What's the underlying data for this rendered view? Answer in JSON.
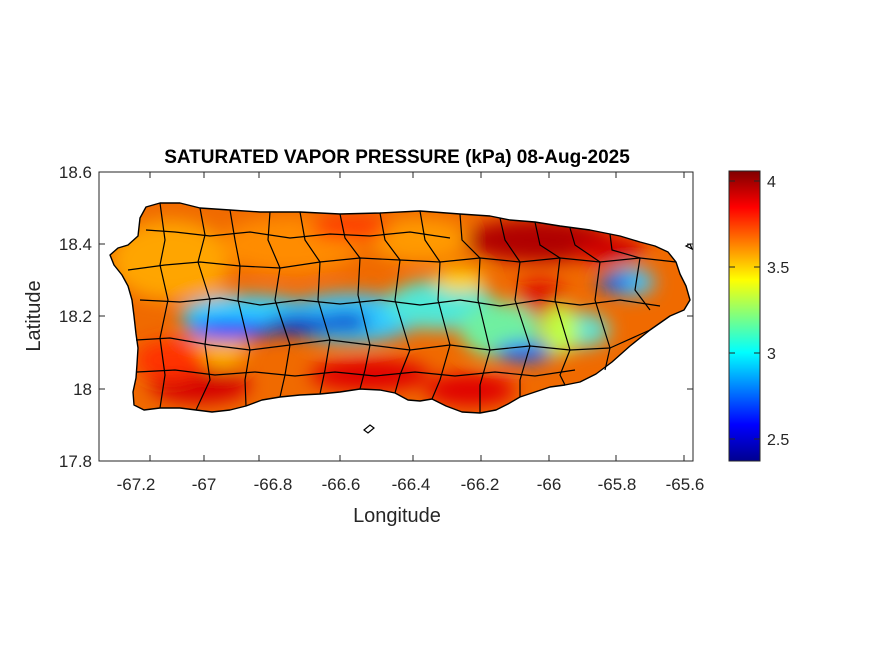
{
  "map": {
    "title": "SATURATED VAPOR PRESSURE (kPa) 08-Aug-2025",
    "xlabel": "Longitude",
    "ylabel": "Latitude",
    "xticks": [
      "-67.2",
      "-67",
      "-66.8",
      "-66.6",
      "-66.4",
      "-66.2",
      "-66",
      "-65.8",
      "-65.6"
    ],
    "yticks": [
      "18.6",
      "18.4",
      "18.2",
      "18",
      "17.8"
    ],
    "colorbar": {
      "ticks": [
        "4",
        "3.5",
        "3",
        "2.5"
      ],
      "range": [
        2.37,
        4.05
      ],
      "colormap": "jet"
    }
  },
  "chart_data": {
    "type": "heatmap",
    "title": "SATURATED VAPOR PRESSURE (kPa) 08-Aug-2025",
    "xlabel": "Longitude",
    "ylabel": "Latitude",
    "xlim": [
      -67.3,
      -65.58
    ],
    "ylim": [
      17.8,
      18.6
    ],
    "xticks": [
      -67.2,
      -67,
      -66.8,
      -66.6,
      -66.4,
      -66.2,
      -66,
      -65.8,
      -65.6
    ],
    "yticks": [
      17.8,
      18,
      18.2,
      18.4,
      18.6
    ],
    "colorbar_range": [
      2.37,
      4.05
    ],
    "colorbar_ticks": [
      2.5,
      3,
      3.5,
      4
    ],
    "colormap": "jet",
    "region": "Puerto Rico",
    "features": [
      {
        "lon": -66.06,
        "lat": 18.42,
        "value": 4.0
      },
      {
        "lon": -65.92,
        "lat": 18.39,
        "value": 3.95
      },
      {
        "lon": -66.95,
        "lat": 18.01,
        "value": 3.85
      },
      {
        "lon": -66.5,
        "lat": 18.05,
        "value": 3.8
      },
      {
        "lon": -66.25,
        "lat": 18.0,
        "value": 3.8
      },
      {
        "lon": -66.05,
        "lat": 18.25,
        "value": 3.8
      },
      {
        "lon": -67.08,
        "lat": 18.35,
        "value": 3.85
      },
      {
        "lon": -66.8,
        "lat": 18.17,
        "value": 2.6
      },
      {
        "lon": -66.6,
        "lat": 18.16,
        "value": 2.6
      },
      {
        "lon": -66.95,
        "lat": 18.15,
        "value": 2.75
      },
      {
        "lon": -66.4,
        "lat": 18.2,
        "value": 3.0
      },
      {
        "lon": -66.1,
        "lat": 18.1,
        "value": 2.9
      },
      {
        "lon": -65.8,
        "lat": 18.28,
        "value": 3.0
      },
      {
        "lon": -66.2,
        "lat": 18.18,
        "value": 3.2
      }
    ]
  }
}
